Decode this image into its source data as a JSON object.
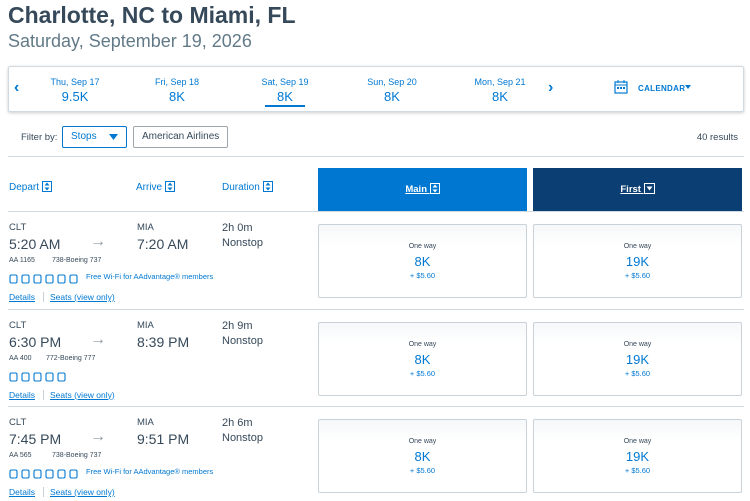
{
  "header": {
    "title": "Charlotte, NC to Miami, FL",
    "date": "Saturday, September 19, 2026"
  },
  "date_strip": {
    "days": [
      {
        "day": "Thu, Sep 17",
        "price": "9.5K"
      },
      {
        "day": "Fri, Sep 18",
        "price": "8K"
      },
      {
        "day": "Sat, Sep 19",
        "price": "8K"
      },
      {
        "day": "Sun, Sep 20",
        "price": "8K"
      },
      {
        "day": "Mon, Sep 21",
        "price": "8K"
      }
    ],
    "calendar": "CALENDAR"
  },
  "filters": {
    "label": "Filter by:",
    "stops": "Stops",
    "airline": "American Airlines",
    "results": "40 results"
  },
  "columns": {
    "depart": "Depart",
    "arrive": "Arrive",
    "duration": "Duration",
    "main": "Main",
    "first": "First"
  },
  "flights": [
    {
      "origin": "CLT",
      "depart": "5:20 AM",
      "dest": "MIA",
      "arrive": "7:20 AM",
      "duration": "2h 0m",
      "stops": "Nonstop",
      "flight": "AA 1165",
      "aircraft": "738-Boeing 737",
      "wifi": "Free Wi-Fi for AAdvantage® members",
      "details": "Details",
      "seats": "Seats (view only)",
      "fares": [
        {
          "label": "One way",
          "price": "8K",
          "tax": "+ $5.60"
        },
        {
          "label": "One way",
          "price": "19K",
          "tax": "+ $5.60"
        }
      ]
    },
    {
      "origin": "CLT",
      "depart": "6:30 PM",
      "dest": "MIA",
      "arrive": "8:39 PM",
      "duration": "2h 9m",
      "stops": "Nonstop",
      "flight": "AA 400",
      "aircraft": "772-Boeing 777",
      "details": "Details",
      "seats": "Seats (view only)",
      "fares": [
        {
          "label": "One way",
          "price": "8K",
          "tax": "+ $5.60"
        },
        {
          "label": "One way",
          "price": "19K",
          "tax": "+ $5.60"
        }
      ]
    },
    {
      "origin": "CLT",
      "depart": "7:45 PM",
      "dest": "MIA",
      "arrive": "9:51 PM",
      "duration": "2h 6m",
      "stops": "Nonstop",
      "flight": "AA 565",
      "aircraft": "738-Boeing 737",
      "wifi": "Free Wi-Fi for AAdvantage® members",
      "details": "Details",
      "seats": "Seats (view only)",
      "fares": [
        {
          "label": "One way",
          "price": "8K",
          "tax": "+ $5.60"
        },
        {
          "label": "One way",
          "price": "19K",
          "tax": "+ $5.60"
        }
      ]
    }
  ]
}
